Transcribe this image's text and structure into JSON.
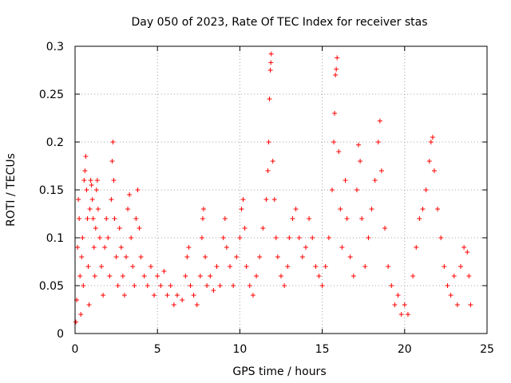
{
  "chart_data": {
    "type": "scatter",
    "title": "Day 050 of 2023, Rate Of TEC Index for receiver stas",
    "xlabel": "GPS time / hours",
    "ylabel": "ROTI / TECUs",
    "xlim": [
      0,
      25
    ],
    "ylim": [
      0,
      0.3
    ],
    "xticks": [
      0,
      5,
      10,
      15,
      20,
      25
    ],
    "yticks": [
      0,
      0.05,
      0.1,
      0.15,
      0.2,
      0.25,
      0.3
    ],
    "xtick_labels": [
      "0",
      "5",
      "10",
      "15",
      "20",
      "25"
    ],
    "ytick_labels": [
      "0",
      "0.05",
      "0.1",
      "0.15",
      "0.2",
      "0.25",
      "0.3"
    ],
    "grid": true,
    "marker": "+",
    "color": "#ff0000",
    "series": [
      {
        "name": "",
        "points": [
          [
            0.05,
            0.012
          ],
          [
            0.1,
            0.035
          ],
          [
            0.15,
            0.09
          ],
          [
            0.2,
            0.14
          ],
          [
            0.25,
            0.12
          ],
          [
            0.3,
            0.06
          ],
          [
            0.35,
            0.02
          ],
          [
            0.4,
            0.08
          ],
          [
            0.45,
            0.1
          ],
          [
            0.5,
            0.05
          ],
          [
            0.55,
            0.16
          ],
          [
            0.6,
            0.17
          ],
          [
            0.65,
            0.185
          ],
          [
            0.7,
            0.15
          ],
          [
            0.75,
            0.12
          ],
          [
            0.8,
            0.07
          ],
          [
            0.85,
            0.03
          ],
          [
            0.9,
            0.13
          ],
          [
            0.95,
            0.16
          ],
          [
            1.0,
            0.155
          ],
          [
            1.05,
            0.14
          ],
          [
            1.1,
            0.12
          ],
          [
            1.15,
            0.09
          ],
          [
            1.2,
            0.06
          ],
          [
            1.25,
            0.11
          ],
          [
            1.3,
            0.15
          ],
          [
            1.35,
            0.16
          ],
          [
            1.4,
            0.13
          ],
          [
            1.5,
            0.1
          ],
          [
            1.6,
            0.07
          ],
          [
            1.7,
            0.04
          ],
          [
            1.8,
            0.09
          ],
          [
            1.9,
            0.12
          ],
          [
            2.0,
            0.1
          ],
          [
            2.1,
            0.06
          ],
          [
            2.2,
            0.14
          ],
          [
            2.25,
            0.18
          ],
          [
            2.3,
            0.2
          ],
          [
            2.35,
            0.16
          ],
          [
            2.4,
            0.12
          ],
          [
            2.5,
            0.08
          ],
          [
            2.6,
            0.05
          ],
          [
            2.7,
            0.11
          ],
          [
            2.8,
            0.09
          ],
          [
            2.9,
            0.06
          ],
          [
            3.0,
            0.04
          ],
          [
            3.1,
            0.08
          ],
          [
            3.2,
            0.13
          ],
          [
            3.3,
            0.145
          ],
          [
            3.4,
            0.1
          ],
          [
            3.5,
            0.07
          ],
          [
            3.6,
            0.05
          ],
          [
            3.7,
            0.12
          ],
          [
            3.8,
            0.15
          ],
          [
            3.9,
            0.11
          ],
          [
            4.0,
            0.08
          ],
          [
            4.2,
            0.06
          ],
          [
            4.4,
            0.05
          ],
          [
            4.6,
            0.07
          ],
          [
            4.8,
            0.04
          ],
          [
            5.0,
            0.06
          ],
          [
            5.2,
            0.05
          ],
          [
            5.4,
            0.065
          ],
          [
            5.6,
            0.04
          ],
          [
            5.8,
            0.05
          ],
          [
            6.0,
            0.03
          ],
          [
            6.2,
            0.04
          ],
          [
            6.5,
            0.035
          ],
          [
            6.7,
            0.06
          ],
          [
            6.8,
            0.08
          ],
          [
            6.9,
            0.09
          ],
          [
            7.0,
            0.05
          ],
          [
            7.2,
            0.04
          ],
          [
            7.4,
            0.03
          ],
          [
            7.6,
            0.06
          ],
          [
            7.7,
            0.1
          ],
          [
            7.75,
            0.12
          ],
          [
            7.8,
            0.13
          ],
          [
            7.9,
            0.08
          ],
          [
            8.0,
            0.05
          ],
          [
            8.2,
            0.06
          ],
          [
            8.4,
            0.045
          ],
          [
            8.6,
            0.07
          ],
          [
            8.8,
            0.05
          ],
          [
            9.0,
            0.1
          ],
          [
            9.1,
            0.12
          ],
          [
            9.2,
            0.09
          ],
          [
            9.4,
            0.07
          ],
          [
            9.6,
            0.05
          ],
          [
            9.8,
            0.08
          ],
          [
            10.0,
            0.1
          ],
          [
            10.1,
            0.13
          ],
          [
            10.2,
            0.14
          ],
          [
            10.3,
            0.11
          ],
          [
            10.4,
            0.07
          ],
          [
            10.6,
            0.05
          ],
          [
            10.8,
            0.04
          ],
          [
            11.0,
            0.06
          ],
          [
            11.2,
            0.08
          ],
          [
            11.4,
            0.11
          ],
          [
            11.6,
            0.14
          ],
          [
            11.7,
            0.17
          ],
          [
            11.75,
            0.2
          ],
          [
            11.8,
            0.245
          ],
          [
            11.85,
            0.275
          ],
          [
            11.88,
            0.283
          ],
          [
            11.9,
            0.292
          ],
          [
            12.0,
            0.18
          ],
          [
            12.1,
            0.14
          ],
          [
            12.2,
            0.1
          ],
          [
            12.3,
            0.08
          ],
          [
            12.5,
            0.06
          ],
          [
            12.7,
            0.05
          ],
          [
            12.9,
            0.07
          ],
          [
            13.0,
            0.1
          ],
          [
            13.2,
            0.12
          ],
          [
            13.4,
            0.13
          ],
          [
            13.6,
            0.1
          ],
          [
            13.8,
            0.08
          ],
          [
            14.0,
            0.09
          ],
          [
            14.2,
            0.12
          ],
          [
            14.4,
            0.1
          ],
          [
            14.6,
            0.07
          ],
          [
            14.8,
            0.06
          ],
          [
            15.0,
            0.05
          ],
          [
            15.2,
            0.07
          ],
          [
            15.4,
            0.1
          ],
          [
            15.6,
            0.15
          ],
          [
            15.7,
            0.2
          ],
          [
            15.75,
            0.23
          ],
          [
            15.8,
            0.27
          ],
          [
            15.85,
            0.276
          ],
          [
            15.9,
            0.288
          ],
          [
            16.0,
            0.19
          ],
          [
            16.1,
            0.13
          ],
          [
            16.2,
            0.09
          ],
          [
            16.4,
            0.16
          ],
          [
            16.5,
            0.12
          ],
          [
            16.7,
            0.08
          ],
          [
            16.9,
            0.06
          ],
          [
            17.1,
            0.15
          ],
          [
            17.2,
            0.197
          ],
          [
            17.3,
            0.18
          ],
          [
            17.4,
            0.12
          ],
          [
            17.6,
            0.07
          ],
          [
            17.8,
            0.1
          ],
          [
            18.0,
            0.13
          ],
          [
            18.2,
            0.16
          ],
          [
            18.4,
            0.2
          ],
          [
            18.5,
            0.222
          ],
          [
            18.6,
            0.17
          ],
          [
            18.8,
            0.11
          ],
          [
            19.0,
            0.07
          ],
          [
            19.2,
            0.05
          ],
          [
            19.4,
            0.03
          ],
          [
            19.6,
            0.04
          ],
          [
            19.8,
            0.02
          ],
          [
            20.0,
            0.03
          ],
          [
            20.2,
            0.02
          ],
          [
            20.5,
            0.06
          ],
          [
            20.7,
            0.09
          ],
          [
            20.9,
            0.12
          ],
          [
            21.1,
            0.13
          ],
          [
            21.3,
            0.15
          ],
          [
            21.5,
            0.18
          ],
          [
            21.6,
            0.2
          ],
          [
            21.7,
            0.205
          ],
          [
            21.8,
            0.17
          ],
          [
            22.0,
            0.13
          ],
          [
            22.2,
            0.1
          ],
          [
            22.4,
            0.07
          ],
          [
            22.6,
            0.05
          ],
          [
            22.8,
            0.04
          ],
          [
            23.0,
            0.06
          ],
          [
            23.2,
            0.03
          ],
          [
            23.4,
            0.07
          ],
          [
            23.6,
            0.09
          ],
          [
            23.8,
            0.085
          ],
          [
            23.9,
            0.06
          ],
          [
            24.0,
            0.03
          ]
        ]
      }
    ]
  }
}
